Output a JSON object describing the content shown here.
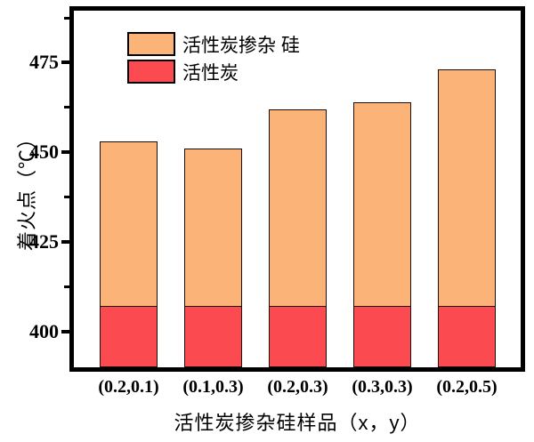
{
  "chart_data": {
    "type": "bar",
    "variant": "overlay-stacked",
    "title": "",
    "xlabel": "活性炭掺杂硅样品（x，y）",
    "ylabel": "着火点（℃）",
    "categories": [
      "(0.2,0.1)",
      "(0.1,0.3)",
      "(0.2,0.3)",
      "(0.3,0.3)",
      "(0.2,0.5)"
    ],
    "series": [
      {
        "name": "活性炭掺杂 硅",
        "color": "#FCB377",
        "values": [
          453,
          451,
          462,
          464,
          473
        ]
      },
      {
        "name": "活性炭",
        "color": "#FB4B50",
        "values": [
          407,
          407,
          407,
          407,
          407
        ]
      }
    ],
    "ylim": [
      390,
      489.5
    ],
    "yticks": [
      400,
      425,
      450,
      475
    ],
    "minor_yticks": [
      412.5,
      437.5,
      462.5,
      487.5
    ],
    "grid": false,
    "legend_position": "upper-left-inside",
    "frame_color": "#000000",
    "bar_edge_color": "#1c1006",
    "legend_edge_color": "#000000"
  }
}
